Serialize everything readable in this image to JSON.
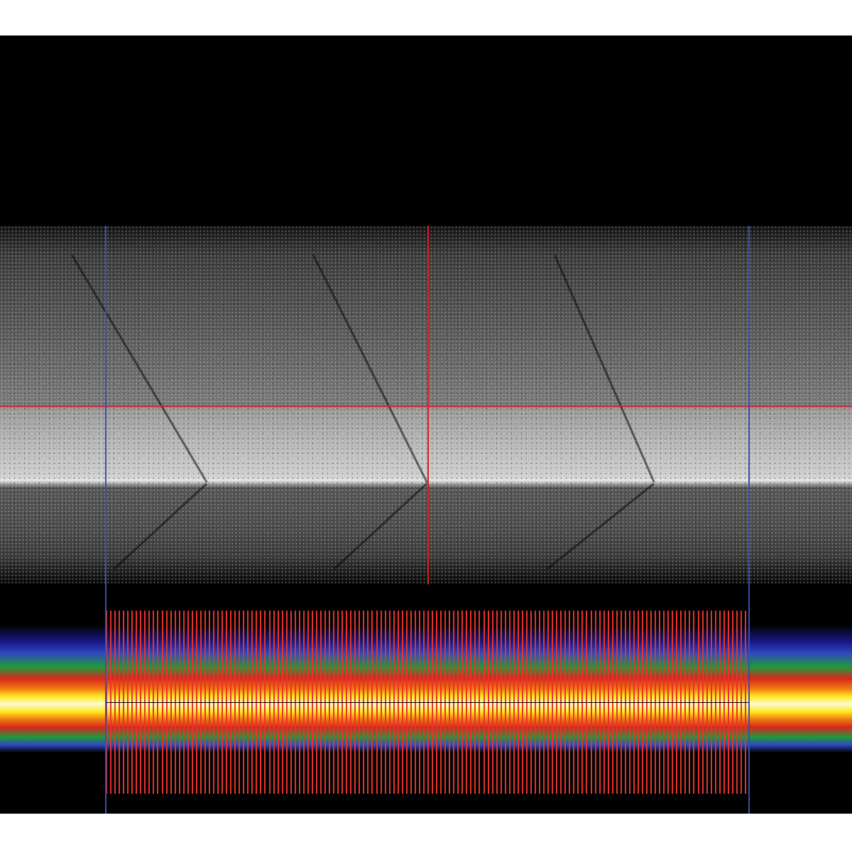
{
  "overlay_colors": {
    "crosshair": "#d8202a",
    "boundary_lines": "#3a4fb0",
    "trace_ticks": "#e8332a",
    "centerline": "#000000"
  },
  "heatmap_colormap": [
    "#000000",
    "#2f48c0",
    "#1f9a3a",
    "#d8261e",
    "#f07a10",
    "#ffe820",
    "#fffbd0"
  ],
  "tick_count": 150
}
